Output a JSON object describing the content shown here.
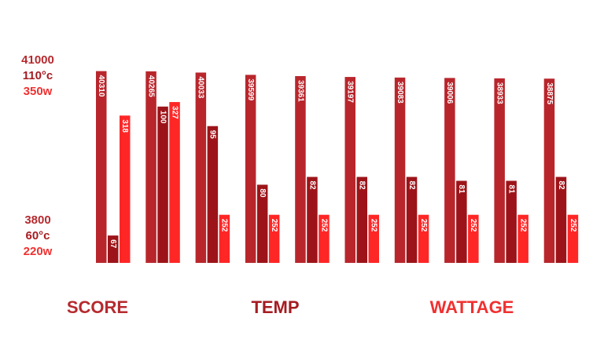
{
  "chart_data": {
    "type": "bar",
    "categories": [
      null,
      null,
      null,
      null,
      null,
      null,
      null,
      null,
      null,
      null
    ],
    "series": [
      {
        "name": "SCORE",
        "color": "#b8262c",
        "text_color": "#b52a2f",
        "values": [
          40310,
          40265,
          40033,
          39599,
          39361,
          39197,
          39083,
          39006,
          38933,
          38875
        ],
        "ylim": [
          3800,
          41000
        ],
        "yticks": [
          3800,
          41000
        ]
      },
      {
        "name": "TEMP",
        "color": "#9c1419",
        "text_color": "#a51c21",
        "values": [
          67,
          100,
          95,
          80,
          82,
          82,
          82,
          81,
          81,
          82
        ],
        "ylim": [
          60,
          110
        ],
        "yticks": [
          {
            "value": 60,
            "label": "60°c"
          },
          {
            "value": 110,
            "label": "110°c"
          }
        ]
      },
      {
        "name": "WATTAGE",
        "color": "#ff2626",
        "text_color": "#f03030",
        "values": [
          318,
          327,
          252,
          252,
          252,
          252,
          252,
          252,
          252,
          252
        ],
        "ylim": [
          220,
          350
        ],
        "yticks": [
          {
            "value": 220,
            "label": "220w"
          },
          {
            "value": 350,
            "label": "350w"
          }
        ]
      }
    ]
  }
}
